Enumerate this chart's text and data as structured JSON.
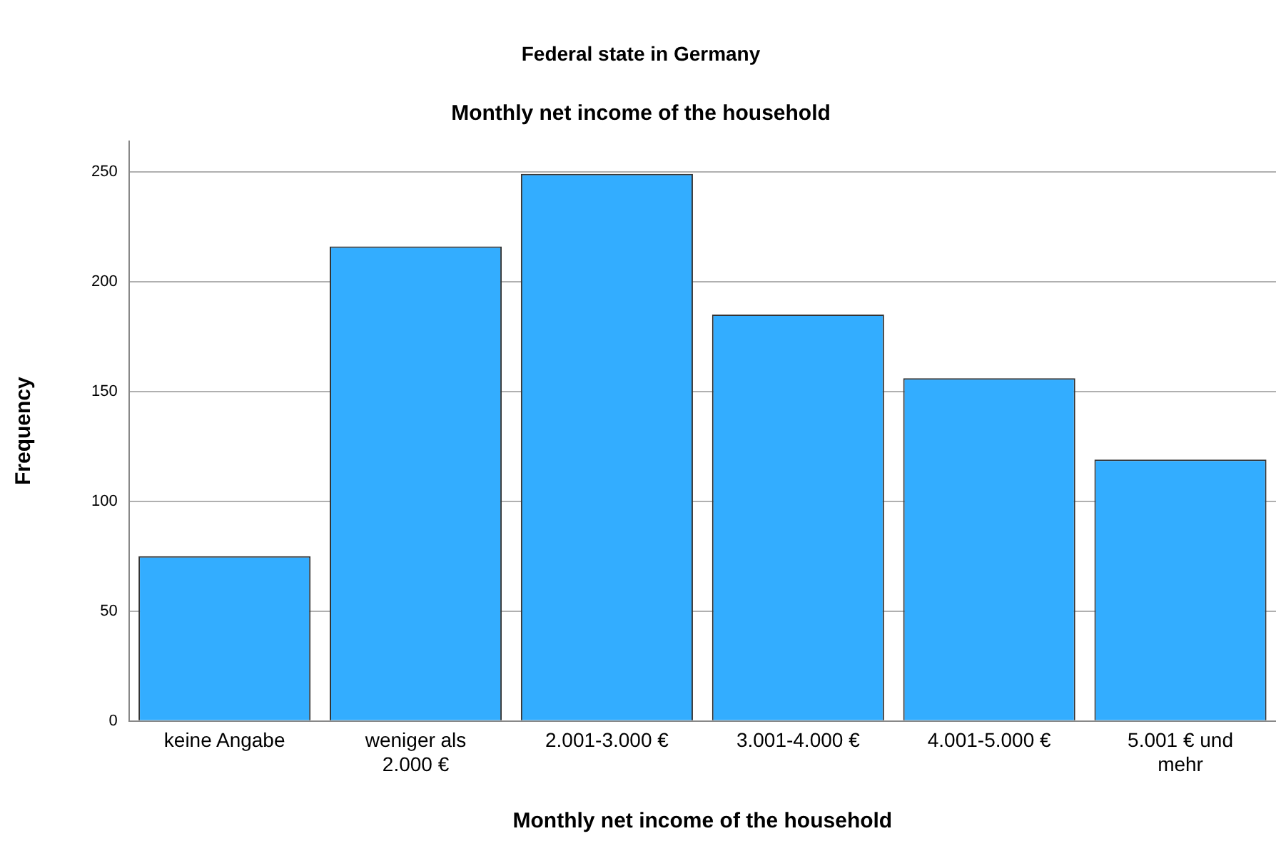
{
  "chart_data": {
    "type": "bar",
    "title": "Federal state in Germany",
    "subtitle": "Monthly net income of the household",
    "xlabel": "Monthly net income of the household",
    "ylabel": "Frequency",
    "categories": [
      "keine Angabe",
      "weniger als 2.000 €",
      "2.001-3.000 €",
      "3.001-4.000 €",
      "4.001-5.000 €",
      "5.001 € und mehr"
    ],
    "values": [
      75,
      216,
      249,
      185,
      156,
      119
    ],
    "color": "#33adff",
    "ylim": [
      0,
      264
    ],
    "yticks": [
      0,
      50,
      100,
      150,
      200,
      250
    ],
    "grid": "y",
    "legend": false
  }
}
